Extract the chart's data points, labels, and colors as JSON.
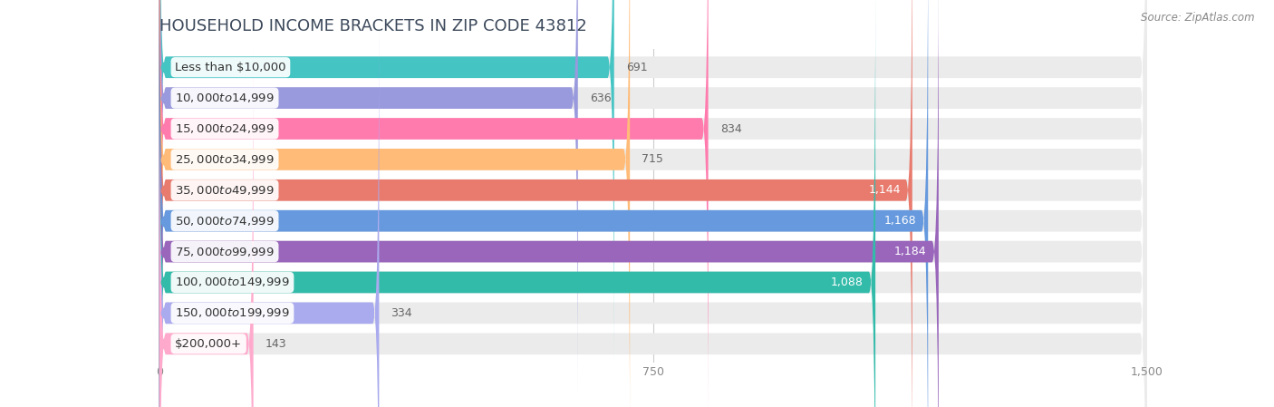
{
  "title": "HOUSEHOLD INCOME BRACKETS IN ZIP CODE 43812",
  "source": "Source: ZipAtlas.com",
  "categories": [
    "Less than $10,000",
    "$10,000 to $14,999",
    "$15,000 to $24,999",
    "$25,000 to $34,999",
    "$35,000 to $49,999",
    "$50,000 to $74,999",
    "$75,000 to $99,999",
    "$100,000 to $149,999",
    "$150,000 to $199,999",
    "$200,000+"
  ],
  "values": [
    691,
    636,
    834,
    715,
    1144,
    1168,
    1184,
    1088,
    334,
    143
  ],
  "bar_colors": [
    "#45C4C4",
    "#9999DD",
    "#FF7BAE",
    "#FFBB77",
    "#E87B6E",
    "#6699DD",
    "#9966BB",
    "#33BBAA",
    "#AAAAEE",
    "#FFAACC"
  ],
  "xlim": [
    0,
    1500
  ],
  "xticks": [
    0,
    750,
    1500
  ],
  "title_fontsize": 13,
  "label_fontsize": 9.5,
  "value_fontsize": 9,
  "value_threshold": 900,
  "bg_strip_color": "#ebebeb",
  "white_bg": "#ffffff"
}
